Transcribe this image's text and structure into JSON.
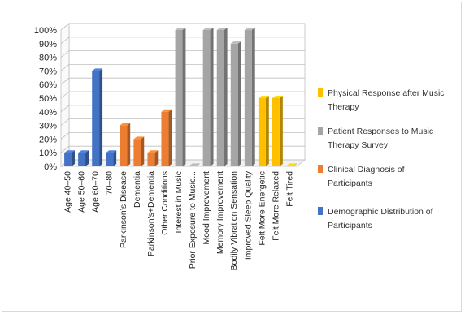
{
  "chart_data": {
    "type": "bar",
    "title": "",
    "xlabel": "",
    "ylabel": "",
    "ylim": [
      0,
      100
    ],
    "y_tick_labels": [
      "0%",
      "10%",
      "20%",
      "30%",
      "40%",
      "50%",
      "60%",
      "70%",
      "80%",
      "90%",
      "100%"
    ],
    "grid": true,
    "style": "3d-columns",
    "legend_position": "right",
    "categories": [
      "Age 40–50",
      "Age 50–60",
      "Age 60–70",
      "70–80",
      "Parkinson’s Disease",
      "Dementia",
      "Parkinson’s+Dementia",
      "Other Conditions",
      "Interest in Music",
      "Prior Exposure to Music...",
      "Mood Improvement",
      "Memory Improvement",
      "Bodily Vibration Sensation",
      "Improved Sleep Quality",
      "Felt More Energetic",
      "Felt More Relaxed",
      "Felt Tired"
    ],
    "series": [
      {
        "name": "Demographic Distribution of Participants",
        "color": "#4472c4",
        "values": [
          10,
          10,
          70,
          10,
          null,
          null,
          null,
          null,
          null,
          null,
          null,
          null,
          null,
          null,
          null,
          null,
          null
        ]
      },
      {
        "name": "Clinical Diagnosis of Participants",
        "color": "#ed7d31",
        "values": [
          null,
          null,
          null,
          null,
          30,
          20,
          10,
          40,
          null,
          null,
          null,
          null,
          null,
          null,
          null,
          null,
          null
        ]
      },
      {
        "name": "Patient Responses to Music Therapy Survey",
        "color": "#a5a5a5",
        "values": [
          null,
          null,
          null,
          null,
          null,
          null,
          null,
          null,
          100,
          0,
          100,
          100,
          90,
          100,
          null,
          null,
          null
        ]
      },
      {
        "name": "Physical Response after Music Therapy",
        "color": "#ffc000",
        "values": [
          null,
          null,
          null,
          null,
          null,
          null,
          null,
          null,
          null,
          null,
          null,
          null,
          null,
          null,
          50,
          50,
          0
        ]
      }
    ],
    "legend_order": [
      "Physical Response after Music Therapy",
      "Patient Responses to Music Therapy Survey",
      "Clinical Diagnosis of Participants",
      "Demographic Distribution of Participants"
    ]
  }
}
